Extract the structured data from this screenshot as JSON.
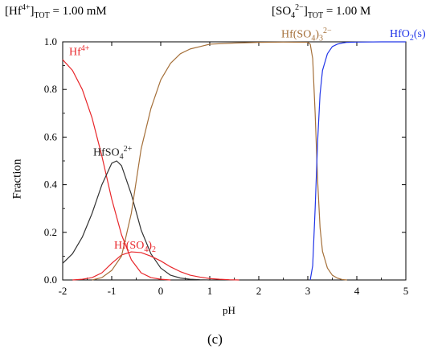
{
  "header": {
    "left_prefix": "[Hf",
    "left_sup": "4+",
    "left_bracket": "]",
    "left_sub": "TOT",
    "left_value": "=   1.00 mM",
    "right_prefix": "[SO",
    "right_sub1": "4",
    "right_sup": "2−",
    "right_bracket": "]",
    "right_sub2": "TOT",
    "right_value": "=   1.00 M"
  },
  "caption": "(c)",
  "chart_data": {
    "type": "line",
    "xlabel": "pH",
    "ylabel": "Fraction",
    "xlim": [
      -2,
      5
    ],
    "ylim": [
      0,
      1.0
    ],
    "x_ticks": [
      "-2",
      "-1",
      "0",
      "1",
      "2",
      "3",
      "4",
      "5"
    ],
    "y_ticks": [
      "0.0",
      "0.2",
      "0.4",
      "0.6",
      "0.8",
      "1.0"
    ],
    "grid": false,
    "series": [
      {
        "name": "Hf4+",
        "color": "#e8262a",
        "x": [
          -2.0,
          -1.8,
          -1.6,
          -1.4,
          -1.2,
          -1.0,
          -0.8,
          -0.6,
          -0.4,
          -0.2,
          0.0,
          0.2
        ],
        "y": [
          0.925,
          0.88,
          0.8,
          0.68,
          0.52,
          0.34,
          0.19,
          0.085,
          0.03,
          0.01,
          0.003,
          0.0
        ]
      },
      {
        "name": "HfSO42+",
        "color": "#333333",
        "x": [
          -2.0,
          -1.8,
          -1.6,
          -1.4,
          -1.2,
          -1.0,
          -0.9,
          -0.8,
          -0.6,
          -0.4,
          -0.2,
          0.0,
          0.2,
          0.4,
          0.6,
          0.8,
          1.0
        ],
        "y": [
          0.07,
          0.11,
          0.18,
          0.28,
          0.4,
          0.49,
          0.5,
          0.48,
          0.36,
          0.21,
          0.11,
          0.05,
          0.02,
          0.008,
          0.003,
          0.001,
          0.0
        ]
      },
      {
        "name": "Hf(SO4)2",
        "color": "#e8262a",
        "x": [
          -1.8,
          -1.6,
          -1.4,
          -1.2,
          -1.0,
          -0.8,
          -0.6,
          -0.4,
          -0.2,
          0.0,
          0.2,
          0.4,
          0.6,
          0.8,
          1.0,
          1.2,
          1.4,
          1.6
        ],
        "y": [
          0.0,
          0.003,
          0.01,
          0.03,
          0.07,
          0.105,
          0.118,
          0.115,
          0.1,
          0.08,
          0.055,
          0.035,
          0.02,
          0.012,
          0.006,
          0.003,
          0.001,
          0.0
        ]
      },
      {
        "name": "Hf(SO4)3 2-",
        "color": "#a5703a",
        "x": [
          -1.4,
          -1.2,
          -1.0,
          -0.8,
          -0.6,
          -0.4,
          -0.2,
          0.0,
          0.2,
          0.4,
          0.6,
          0.8,
          1.0,
          1.5,
          2.0,
          2.5,
          3.0,
          3.05,
          3.1,
          3.15,
          3.2,
          3.25,
          3.3,
          3.4,
          3.5,
          3.6,
          3.7,
          3.8
        ],
        "y": [
          0.0,
          0.01,
          0.04,
          0.1,
          0.28,
          0.55,
          0.72,
          0.84,
          0.91,
          0.95,
          0.97,
          0.98,
          0.99,
          0.995,
          0.998,
          0.999,
          0.998,
          0.99,
          0.93,
          0.7,
          0.42,
          0.22,
          0.12,
          0.05,
          0.02,
          0.008,
          0.002,
          0.0
        ]
      },
      {
        "name": "HfO2(s)",
        "color": "#2236e8",
        "x": [
          3.05,
          3.1,
          3.15,
          3.2,
          3.25,
          3.3,
          3.4,
          3.5,
          3.6,
          3.7,
          3.8,
          4.0,
          4.5,
          5.0
        ],
        "y": [
          0.0,
          0.06,
          0.3,
          0.58,
          0.78,
          0.88,
          0.95,
          0.98,
          0.99,
          0.995,
          0.998,
          0.999,
          1.0,
          1.0
        ]
      }
    ],
    "annotations": {
      "hf4": {
        "base": "Hf",
        "sup": "4+"
      },
      "hfso4": {
        "base": "HfSO",
        "sub": "4",
        "sup": "2+"
      },
      "hfso42": {
        "base": "Hf(SO",
        "sub": "4",
        "tail": ")",
        "sub2": "2"
      },
      "hfso43": {
        "base": "Hf(SO",
        "sub": "4",
        "tail": ")",
        "sub2": "3",
        "sup": "2−"
      },
      "hfo2": {
        "base": "HfO",
        "sub": "2",
        "tail": "(s)"
      }
    }
  }
}
